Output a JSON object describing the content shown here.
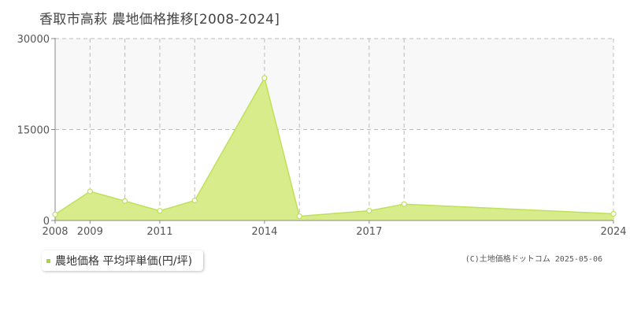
{
  "title": "香取市高萩 農地価格推移[2008-2024]",
  "legend": {
    "label": "農地価格 平均坪単価(円/坪)"
  },
  "credit": "(C)土地価格ドットコム 2025-05-06",
  "colors": {
    "fill": "#d9ec8c",
    "line": "#bfe05a",
    "marker_fill": "#ffffff",
    "legend_swatch": "#a5d63b",
    "grid": "#bbbbbb",
    "axis": "#888888",
    "band": "#f8f8f8"
  },
  "chart_data": {
    "type": "area",
    "title": "香取市高萩 農地価格推移[2008-2024]",
    "xlabel": "",
    "ylabel": "",
    "x": [
      2008,
      2009,
      2010,
      2011,
      2012,
      2014,
      2015,
      2017,
      2018,
      2024
    ],
    "x_ticks": [
      2008,
      2009,
      2011,
      2014,
      2017,
      2024
    ],
    "y_ticks": [
      0,
      15000,
      30000
    ],
    "ylim": [
      0,
      30000
    ],
    "grid": true,
    "legend_position": "bottom-left",
    "series": [
      {
        "name": "農地価格 平均坪単価(円/坪)",
        "values": [
          1000,
          4800,
          3200,
          1600,
          3300,
          23500,
          700,
          1600,
          2700,
          1100
        ]
      }
    ]
  }
}
